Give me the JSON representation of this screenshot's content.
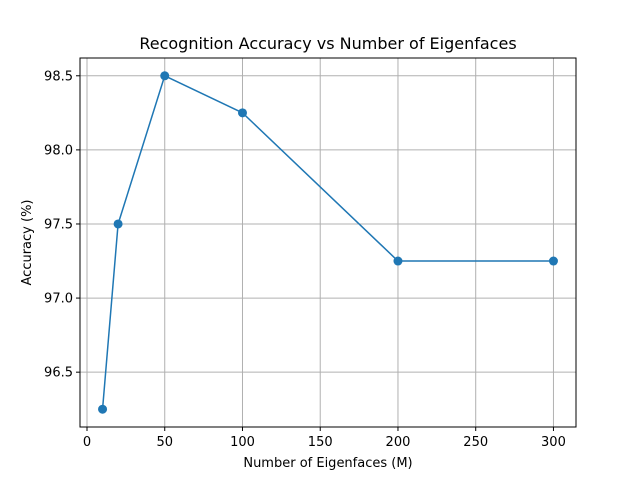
{
  "chart_data": {
    "type": "line",
    "title": "Recognition Accuracy vs Number of Eigenfaces",
    "xlabel": "Number of Eigenfaces (M)",
    "ylabel": "Accuracy (%)",
    "xlim": [
      -4.5,
      314.5
    ],
    "ylim": [
      96.13,
      98.62
    ],
    "xticks": [
      0,
      50,
      100,
      150,
      200,
      250,
      300
    ],
    "yticks": [
      96.5,
      97.0,
      97.5,
      98.0,
      98.5
    ],
    "xtick_labels": [
      "0",
      "50",
      "100",
      "150",
      "200",
      "250",
      "300"
    ],
    "ytick_labels": [
      "96.5",
      "97.0",
      "97.5",
      "98.0",
      "98.5"
    ],
    "grid": true,
    "series": [
      {
        "color": "#1f77b4",
        "marker": "circle",
        "x": [
          10,
          20,
          50,
          100,
          200,
          300
        ],
        "y": [
          96.25,
          97.5,
          98.5,
          98.25,
          97.25,
          97.25
        ]
      }
    ]
  }
}
